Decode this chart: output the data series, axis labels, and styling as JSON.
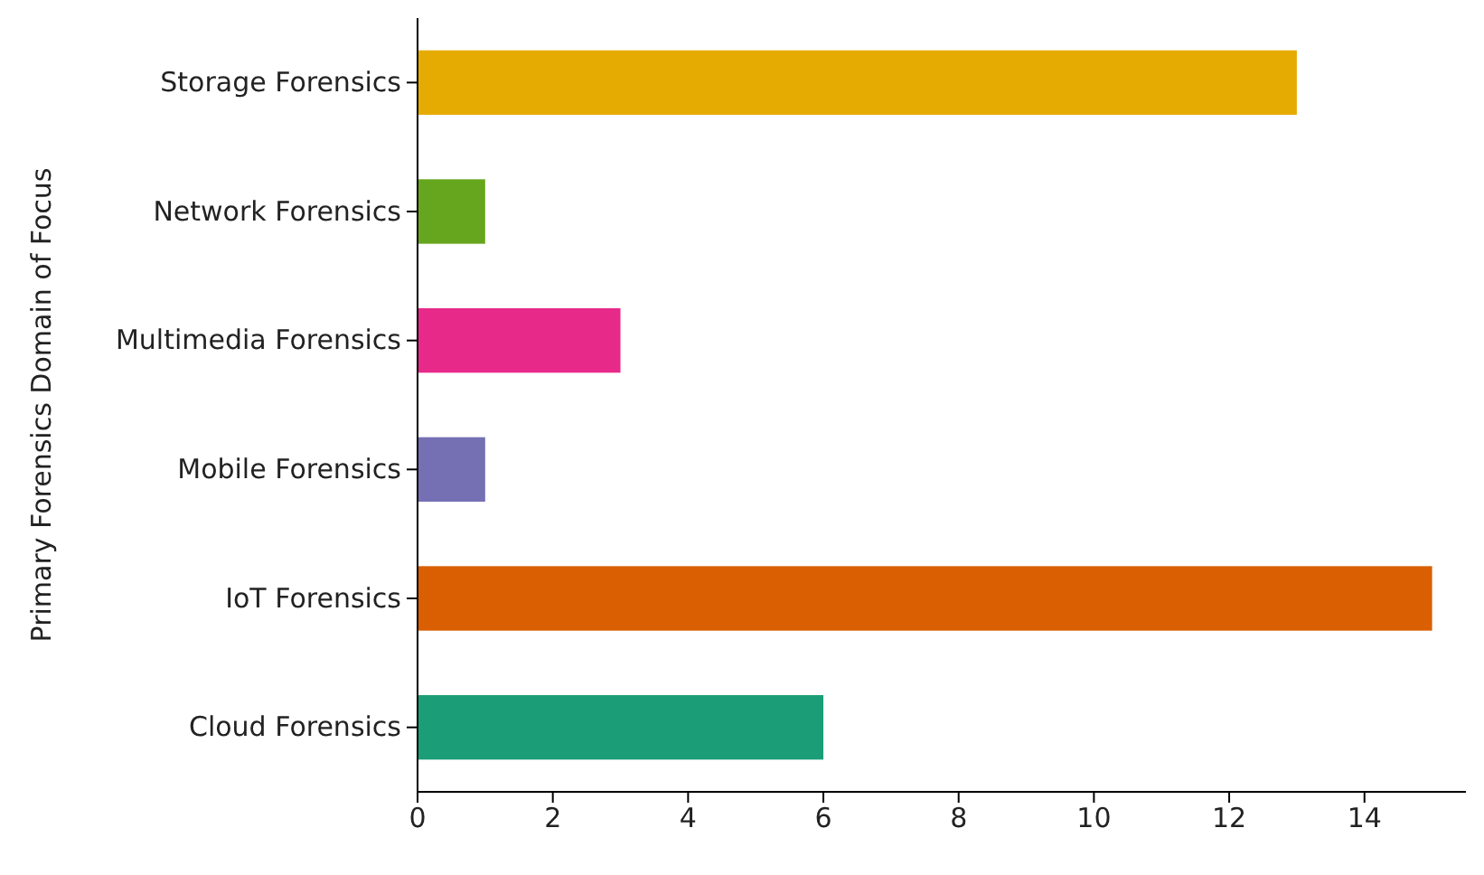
{
  "chart_data": {
    "type": "bar",
    "orientation": "horizontal",
    "ylabel": "Primary Forensics Domain of Focus",
    "categories": [
      "Storage Forensics",
      "Network Forensics",
      "Multimedia Forensics",
      "Mobile Forensics",
      "IoT Forensics",
      "Cloud Forensics"
    ],
    "values": [
      13,
      1,
      3,
      1,
      15,
      6
    ],
    "colors": [
      "#e6ab02",
      "#66a61e",
      "#e7298a",
      "#7570b3",
      "#d95f02",
      "#1b9e77"
    ],
    "xlim": [
      0,
      15.5
    ],
    "xticks": [
      0,
      2,
      4,
      6,
      8,
      10,
      12,
      14
    ],
    "grid": false
  }
}
